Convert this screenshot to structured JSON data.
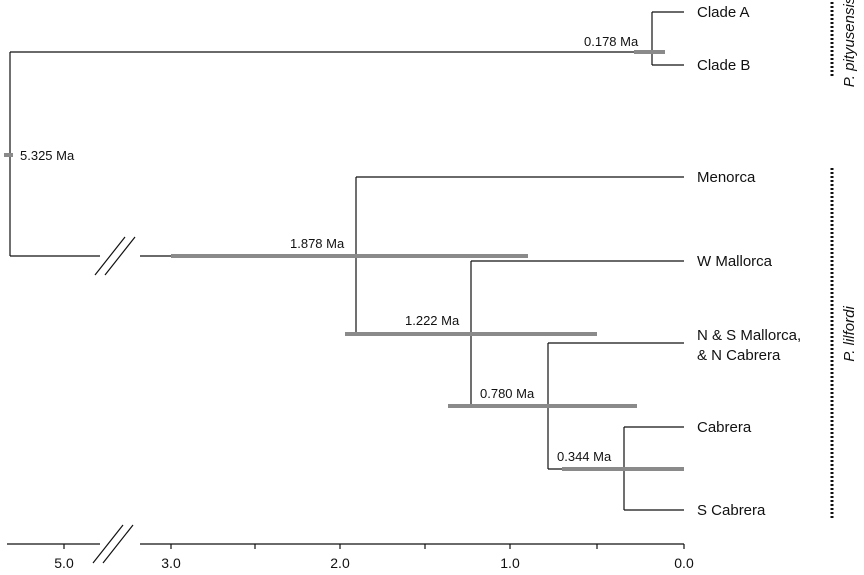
{
  "tips": {
    "clade_a": "Clade A",
    "clade_b": "Clade B",
    "menorca": "Menorca",
    "w_mallorca": "W Mallorca",
    "ns_mallorca_1": "N & S Mallorca,",
    "ns_mallorca_2": "& N Cabrera",
    "cabrera": "Cabrera",
    "s_cabrera": "S Cabrera"
  },
  "nodes": {
    "root": "5.325 Ma",
    "pityusensis": "0.178 Ma",
    "lilfordi": "1.878 Ma",
    "mallorca": "1.222 Ma",
    "ns_cabrera": "0.780 Ma",
    "cabrera": "0.344 Ma"
  },
  "groups": {
    "pityusensis": "P. pityusensis",
    "lilfordi": "P. lilfordi"
  },
  "axis": {
    "ticks": [
      "5.0",
      "3.0",
      "2.0",
      "1.0",
      "0.0"
    ]
  }
}
